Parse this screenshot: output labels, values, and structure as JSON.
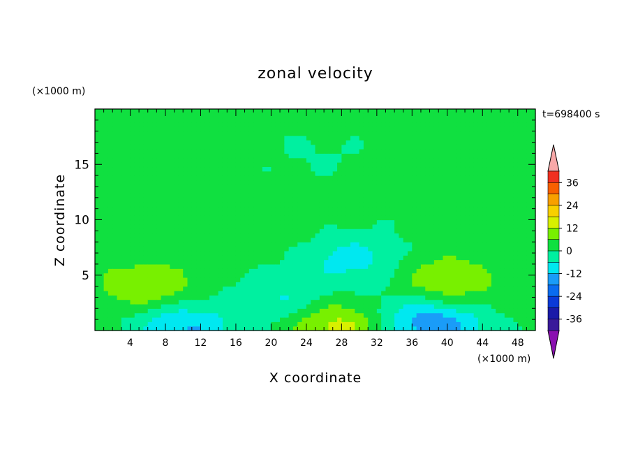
{
  "chart_data": {
    "type": "heatmap",
    "title": "zonal velocity",
    "time_label": "t=698400 s",
    "xlabel": "X coordinate",
    "ylabel": "Z coordinate",
    "x_unit": "(×1000 m)",
    "y_unit": "(×1000 m)",
    "xlim": [
      0,
      50
    ],
    "ylim": [
      0,
      20
    ],
    "x_ticks": [
      "4",
      "8",
      "12",
      "16",
      "20",
      "24",
      "28",
      "32",
      "36",
      "40",
      "44",
      "48"
    ],
    "y_ticks": [
      "5",
      "10",
      "15"
    ],
    "colorbar": {
      "labels": [
        "36",
        "24",
        "12",
        "0",
        "-12",
        "-24",
        "-36"
      ],
      "levels": [
        -42,
        -36,
        -30,
        -24,
        -18,
        -12,
        -6,
        0,
        6,
        12,
        18,
        24,
        30,
        36,
        42
      ],
      "colors": [
        "#6a0dad",
        "#3a1a9a",
        "#1a1aa8",
        "#0a3ad8",
        "#0a6cf0",
        "#1a9cf8",
        "#00e8f0",
        "#00f0a0",
        "#10e040",
        "#78f000",
        "#d8f000",
        "#f8d000",
        "#f8a000",
        "#f86000",
        "#f03020",
        "#f8a8a8"
      ],
      "under_color": "#8a10b0",
      "over_color": "#f8a8a8"
    },
    "field_features": [
      {
        "x": 6,
        "z": 4,
        "value": 10
      },
      {
        "x": 40,
        "z": 4.5,
        "value": 10
      },
      {
        "x": 28,
        "z": 0.5,
        "value": 14
      },
      {
        "x": 29,
        "z": 6.5,
        "value": -10
      },
      {
        "x": 21,
        "z": 3,
        "value": -8
      },
      {
        "x": 10,
        "z": 0.4,
        "value": -14
      },
      {
        "x": 39,
        "z": 0.4,
        "value": -16
      },
      {
        "x": 34,
        "z": 1.5,
        "value": -6
      },
      {
        "x": 25,
        "z": 16,
        "value": -2
      },
      {
        "x": 20,
        "z": 9,
        "value": 3
      }
    ]
  }
}
